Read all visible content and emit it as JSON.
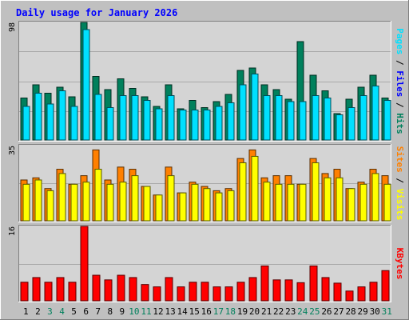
{
  "chart_data": {
    "type": "bar",
    "title": "Daily usage for January 2026",
    "categories": [
      "1",
      "2",
      "3",
      "4",
      "5",
      "6",
      "7",
      "8",
      "9",
      "10",
      "11",
      "12",
      "13",
      "14",
      "15",
      "16",
      "17",
      "18",
      "19",
      "20",
      "21",
      "22",
      "23",
      "24",
      "25",
      "26",
      "27",
      "28",
      "29",
      "30",
      "31"
    ],
    "weekend_days": [
      "3",
      "4",
      "10",
      "11",
      "17",
      "18",
      "24",
      "25",
      "31"
    ],
    "panels": [
      {
        "ymax_label": "98",
        "ylim": [
          0,
          98
        ],
        "series": [
          {
            "name": "Hits",
            "color": "#00805c",
            "values": [
              35,
              46,
              39,
              44,
              36,
              98,
              53,
              42,
              51,
              43,
              36,
              28,
              46,
              26,
              33,
              27,
              32,
              38,
              58,
              60,
              46,
              42,
              34,
              82,
              54,
              41,
              22,
              34,
              44,
              54,
              35
            ]
          },
          {
            "name": "Files",
            "color": "#0000ff",
            "values": [
              0,
              0,
              0,
              0,
              0,
              0,
              0,
              0,
              0,
              0,
              0,
              0,
              0,
              0,
              0,
              0,
              0,
              0,
              0,
              0,
              0,
              0,
              0,
              0,
              0,
              0,
              0,
              0,
              0,
              0,
              0
            ]
          },
          {
            "name": "Pages",
            "color": "#00e0ff",
            "values": [
              28,
              39,
              30,
              41,
              28,
              92,
              38,
              27,
              37,
              37,
              33,
              26,
              37,
              25,
              25,
              25,
              28,
              31,
              46,
              55,
              37,
              37,
              32,
              32,
              37,
              35,
              21,
              27,
              37,
              45,
              33
            ]
          }
        ],
        "label_parts": [
          {
            "text": "Pages",
            "color": "#00e0ff"
          },
          {
            "text": " / ",
            "color": "#000000"
          },
          {
            "text": "Files",
            "color": "#0000ff"
          },
          {
            "text": " / ",
            "color": "#000000"
          },
          {
            "text": "Hits",
            "color": "#00805c"
          }
        ]
      },
      {
        "ymax_label": "35",
        "ylim": [
          0,
          35
        ],
        "series": [
          {
            "name": "Visits",
            "color": "#ff8000",
            "values": [
              19,
              20,
              15,
              24,
              17,
              21,
              33,
              19,
              25,
              24,
              16,
              12,
              25,
              13,
              18,
              16,
              14,
              15,
              29,
              33,
              20,
              21,
              21,
              17,
              29,
              22,
              24,
              15,
              18,
              24,
              21
            ]
          },
          {
            "name": "Sites",
            "color": "#ffff00",
            "values": [
              17,
              19,
              14,
              22,
              17,
              18,
              24,
              17,
              18,
              21,
              16,
              12,
              21,
              13,
              17,
              15,
              13,
              14,
              27,
              30,
              18,
              17,
              17,
              17,
              27,
              20,
              20,
              15,
              17,
              22,
              17
            ]
          }
        ],
        "label_parts": [
          {
            "text": "Sites",
            "color": "#ff8000"
          },
          {
            "text": " / ",
            "color": "#000000"
          },
          {
            "text": "Visits",
            "color": "#ffff00"
          }
        ]
      },
      {
        "ymax_label": "16",
        "ylim": [
          0,
          16
        ],
        "series": [
          {
            "name": "KBytes",
            "color": "#ff0000",
            "values": [
              4.0,
              5.0,
              4.0,
              5.0,
              4.0,
              16.0,
              5.5,
              4.5,
              5.5,
              5.0,
              3.5,
              3.0,
              5.0,
              3.0,
              4.0,
              4.0,
              3.0,
              3.0,
              4.0,
              5.0,
              7.5,
              4.5,
              4.5,
              3.9,
              7.5,
              5.0,
              3.8,
              2.1,
              3.0,
              4.0,
              6.5
            ]
          }
        ],
        "label_parts": [
          {
            "text": "KBytes",
            "color": "#ff0000"
          }
        ]
      }
    ],
    "colors": {
      "background": "#c0c0c0",
      "plot_background": "#d4d4d4",
      "title": "#0000ff",
      "weekday_tick": "#000000",
      "weekend_tick": "#00805c"
    }
  }
}
